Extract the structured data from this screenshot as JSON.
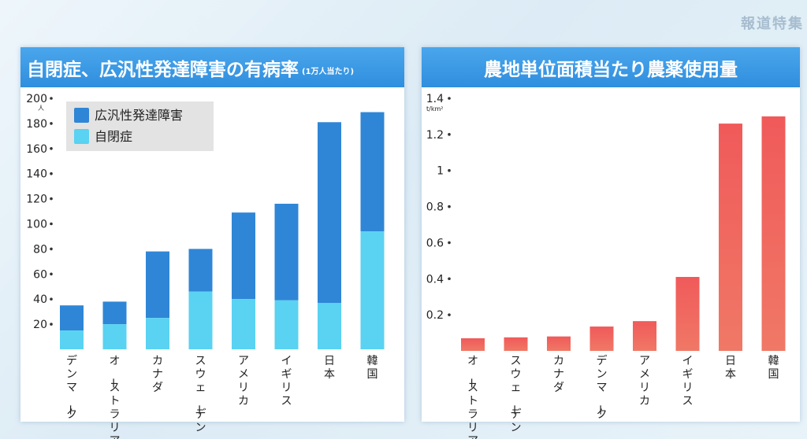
{
  "corner_logo": "報道特集",
  "left_chart": {
    "title": "自閉症、広汎性発達障害の有病率",
    "subtitle": "(1万人当たり)",
    "unit": "人",
    "legend": [
      "広汎性発達障害",
      "自閉症"
    ],
    "colors": {
      "広汎性発達障害": "#2f86d6",
      "自閉症": "#5ad2f2"
    }
  },
  "right_chart": {
    "title": "農地単位面積当たり農薬使用量",
    "unit": "t/km²",
    "colors": {
      "bar_top": "#f05a5a",
      "bar_bottom": "#f07866"
    }
  },
  "chart_data": [
    {
      "type": "bar",
      "stacked": true,
      "title": "自閉症、広汎性発達障害の有病率",
      "subtitle": "(1万人当たり)",
      "ylabel": "人",
      "xlabel": "",
      "categories": [
        "デンマーク",
        "オーストラリア",
        "カナダ",
        "スウェーデン",
        "アメリカ",
        "イギリス",
        "日本",
        "韓国"
      ],
      "series": [
        {
          "name": "自閉症",
          "values": [
            15,
            20,
            25,
            46,
            40,
            39,
            37,
            94
          ]
        },
        {
          "name": "広汎性発達障害",
          "values": [
            20,
            18,
            53,
            34,
            69,
            77,
            144,
            95
          ]
        }
      ],
      "ylim": [
        0,
        200
      ],
      "yticks": [
        20,
        40,
        60,
        80,
        100,
        120,
        140,
        160,
        180,
        200
      ],
      "legend_position": "top-left",
      "grid": false
    },
    {
      "type": "bar",
      "title": "農地単位面積当たり農薬使用量",
      "ylabel": "t/km²",
      "xlabel": "",
      "categories": [
        "オーストラリア",
        "スウェーデン",
        "カナダ",
        "デンマーク",
        "アメリカ",
        "イギリス",
        "日本",
        "韓国"
      ],
      "values": [
        0.07,
        0.075,
        0.08,
        0.135,
        0.165,
        0.41,
        1.26,
        1.3
      ],
      "ylim": [
        0,
        1.4
      ],
      "yticks": [
        "0.2",
        "0.4",
        "0.6",
        "0.8",
        "1",
        "1.2",
        "1.4"
      ],
      "grid": false
    }
  ]
}
